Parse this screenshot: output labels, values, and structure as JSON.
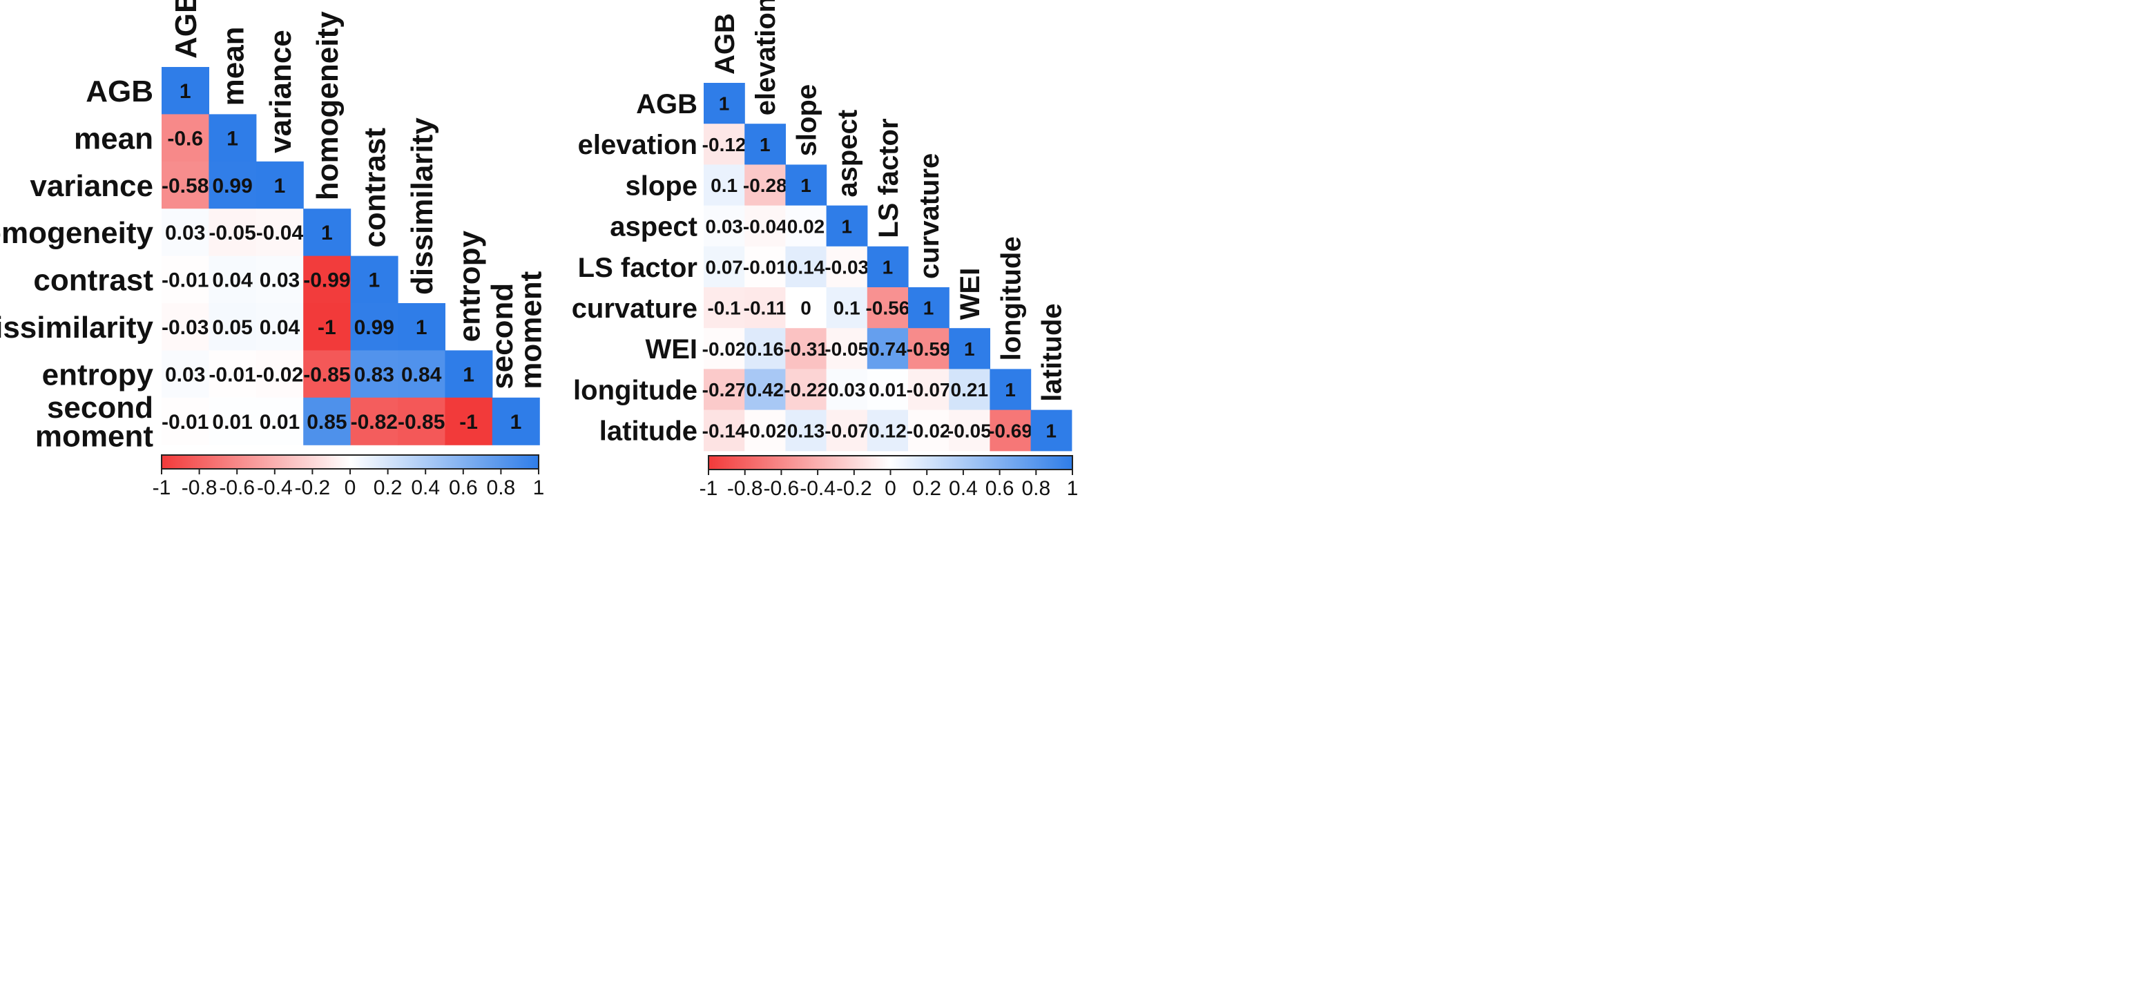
{
  "colors": {
    "negative": "#f23a3a",
    "neutral": "#ffffff",
    "positive": "#2f7de8",
    "text": "#111111"
  },
  "chart_data": [
    {
      "type": "heatmap",
      "title": "",
      "variables": [
        "AGB",
        "mean",
        "variance",
        "homogeneity",
        "contrast",
        "dissimilarity",
        "entropy",
        "second moment"
      ],
      "row_labels": [
        "AGB",
        "mean",
        "variance",
        "homogeneity",
        "contrast",
        "dissimilarity",
        "entropy",
        [
          "second",
          "moment"
        ]
      ],
      "column_labels": [
        "AGB",
        "mean",
        "variance",
        "homogeneity",
        "contrast",
        "dissimilarity",
        "entropy",
        [
          "second",
          "moment"
        ]
      ],
      "matrix": [
        [
          "1"
        ],
        [
          "-0.6",
          "1"
        ],
        [
          "-0.58",
          "0.99",
          "1"
        ],
        [
          "0.03",
          "-0.05",
          "-0.04",
          "1"
        ],
        [
          "-0.01",
          "0.04",
          "0.03",
          "-0.99",
          "1"
        ],
        [
          "-0.03",
          "0.05",
          "0.04",
          "-1",
          "0.99",
          "1"
        ],
        [
          "0.03",
          "-0.01",
          "-0.02",
          "-0.85",
          "0.83",
          "0.84",
          "1"
        ],
        [
          "-0.01",
          "0.01",
          "0.01",
          "0.85",
          "-0.82",
          "-0.85",
          "-1",
          "1"
        ]
      ],
      "colorbar": {
        "range": [
          -1,
          1
        ],
        "ticks": [
          "-1",
          "-0.8",
          "-0.6",
          "-0.4",
          "-0.2",
          "0",
          "0.2",
          "0.4",
          "0.6",
          "0.8",
          "1"
        ]
      }
    },
    {
      "type": "heatmap",
      "title": "",
      "variables": [
        "AGB",
        "elevation",
        "slope",
        "aspect",
        "LS factor",
        "curvature",
        "WEI",
        "longitude",
        "latitude"
      ],
      "row_labels": [
        "AGB",
        "elevation",
        "slope",
        "aspect",
        "LS factor",
        "curvature",
        "WEI",
        "longitude",
        "latitude"
      ],
      "column_labels": [
        "AGB",
        "elevation",
        "slope",
        "aspect",
        "LS factor",
        "curvature",
        "WEI",
        "longitude",
        "latitude"
      ],
      "matrix": [
        [
          "1"
        ],
        [
          "-0.12",
          "1"
        ],
        [
          "0.1",
          "-0.28",
          "1"
        ],
        [
          "0.03",
          "-0.04",
          "0.02",
          "1"
        ],
        [
          "0.07",
          "-0.01",
          "0.14",
          "-0.03",
          "1"
        ],
        [
          "-0.1",
          "-0.11",
          "0",
          "0.1",
          "-0.56",
          "1"
        ],
        [
          "-0.02",
          "0.16",
          "-0.31",
          "-0.05",
          "0.74",
          "-0.59",
          "1"
        ],
        [
          "-0.27",
          "0.42",
          "-0.22",
          "0.03",
          "0.01",
          "-0.07",
          "0.21",
          "1"
        ],
        [
          "-0.14",
          "-0.02",
          "0.13",
          "-0.07",
          "0.12",
          "-0.02",
          "-0.05",
          "-0.69",
          "1"
        ]
      ],
      "colorbar": {
        "range": [
          -1,
          1
        ],
        "ticks": [
          "-1",
          "-0.8",
          "-0.6",
          "-0.4",
          "-0.2",
          "0",
          "0.2",
          "0.4",
          "0.6",
          "0.8",
          "1"
        ]
      }
    }
  ]
}
